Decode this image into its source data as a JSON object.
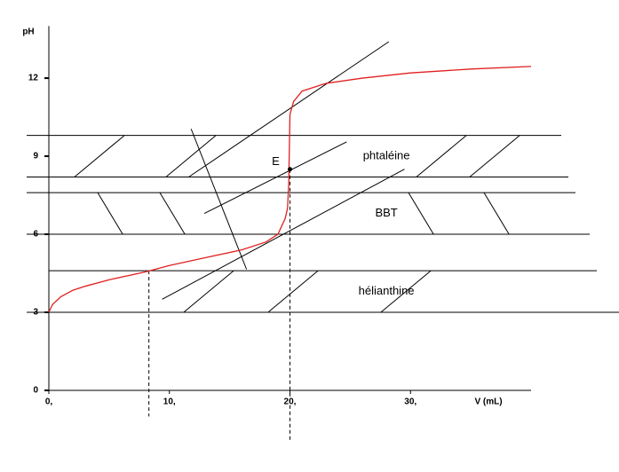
{
  "chart_data": {
    "type": "line",
    "x_label": "V (mL)",
    "y_label": "pH",
    "xlim": [
      0,
      40
    ],
    "ylim": [
      0,
      14
    ],
    "xticks": [
      {
        "value": 0,
        "label": "0,"
      },
      {
        "value": 10,
        "label": "10,"
      },
      {
        "value": 20,
        "label": "20,"
      },
      {
        "value": 30,
        "label": "30,"
      }
    ],
    "yticks": [
      0,
      3,
      6,
      9,
      12
    ],
    "x": [
      0,
      0.3,
      1,
      2,
      3,
      5,
      8,
      10,
      13,
      16,
      18,
      19,
      19.6,
      19.8,
      19.9,
      20,
      20.3,
      21,
      23,
      26,
      30,
      35,
      40
    ],
    "series": [
      {
        "color": "#e02020",
        "values": [
          3.0,
          3.3,
          3.6,
          3.85,
          4.0,
          4.25,
          4.55,
          4.8,
          5.1,
          5.4,
          5.7,
          6.0,
          6.6,
          7.0,
          8.0,
          10.6,
          11.1,
          11.5,
          11.8,
          12.0,
          12.2,
          12.35,
          12.45
        ]
      }
    ],
    "zones": [
      {
        "label": "phtaléine",
        "low": 8.2,
        "high": 9.8
      },
      {
        "label": "BBT",
        "low": 6.0,
        "high": 7.6
      },
      {
        "label": "hélianthine",
        "low": 3.0,
        "high": 4.6
      }
    ],
    "construction_lines": [
      {
        "x": [
          11.6,
          28.2
        ],
        "y": [
          8.2,
          13.4
        ]
      },
      {
        "x": [
          12.9,
          24.7
        ],
        "y": [
          6.8,
          9.55
        ]
      },
      {
        "x": [
          9.4,
          29.5
        ],
        "y": [
          3.5,
          8.5
        ]
      },
      {
        "x": [
          11.8,
          16.4
        ],
        "y": [
          10.05,
          4.65
        ]
      }
    ],
    "dashed_lines": [
      {
        "x": 8.3,
        "y": [
          4.6,
          -1
        ]
      },
      {
        "x": 20,
        "y": [
          8.5,
          -2
        ]
      }
    ],
    "point": {
      "label": "E",
      "x": 20,
      "y": 8.5
    }
  }
}
